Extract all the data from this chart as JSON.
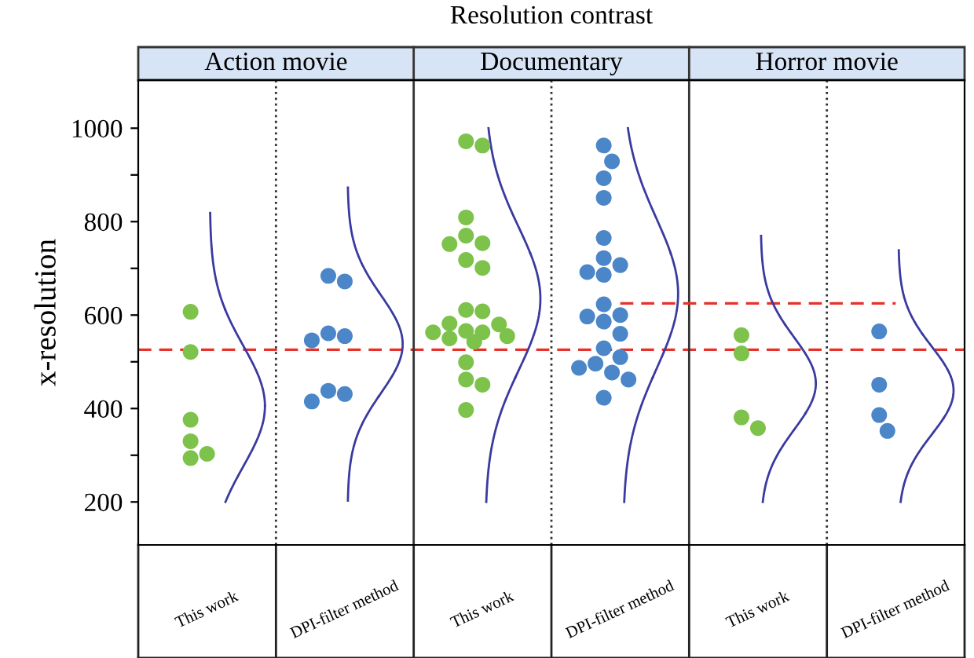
{
  "chart_data": {
    "type": "scatter",
    "title": "Resolution contrast",
    "ylabel": "x-resolution",
    "marker": "circle",
    "categories": [
      "This work",
      "DPI-filter method",
      "This work",
      "DPI-filter method",
      "This work",
      "DPI-filter method"
    ],
    "annotations": [
      "Action movie",
      "Documentary",
      "Horror movie"
    ],
    "ylim": [
      108,
      1103
    ],
    "yticks": [
      200,
      {
        "value": 300,
        "label": null
      },
      400,
      {
        "value": 500,
        "label": null
      },
      600,
      {
        "value": 700,
        "label": null
      },
      800,
      {
        "value": 900,
        "label": null
      },
      1000
    ],
    "ref_lines": [
      {
        "axis": "y",
        "value": 526,
        "color": "#e8312a",
        "line_style": "dashed"
      }
    ],
    "series": [
      {
        "colors": [
          "#7dc24b",
          "#4a86c8",
          "#7dc24b",
          "#4a86c8",
          "#7dc24b",
          "#4a86c8"
        ],
        "values": [
          607,
          684,
          963,
          963,
          557,
          565
        ]
      },
      {
        "colors": [
          "#7dc24b",
          "#4a86c8",
          "#7dc24b",
          "#4a86c8",
          "#7dc24b",
          "#4a86c8"
        ],
        "values": [
          521,
          672,
          972,
          929,
          518,
          451
        ]
      },
      {
        "colors": [
          "#7dc24b",
          "#4a86c8",
          "#7dc24b",
          "#4a86c8",
          "#7dc24b",
          "#4a86c8"
        ],
        "values": [
          376,
          561,
          809,
          893,
          381,
          386
        ]
      },
      {
        "colors": [
          "#7dc24b",
          "#4a86c8",
          "#7dc24b",
          "#4a86c8",
          "#7dc24b",
          "#4a86c8"
        ],
        "values": [
          294,
          555,
          770,
          851,
          358,
          352
        ]
      },
      {
        "colors": [
          "#7dc24b",
          "#4a86c8",
          "#7dc24b",
          "#4a86c8",
          "#7dc24b",
          "#4a86c8"
        ],
        "values": [
          303,
          546,
          754,
          765,
          null,
          null
        ]
      },
      {
        "colors": [
          "#7dc24b",
          "#4a86c8",
          "#7dc24b",
          "#4a86c8",
          "#7dc24b",
          "#4a86c8"
        ],
        "values": [
          330,
          438,
          752,
          686,
          null,
          null
        ]
      },
      {
        "colors": [
          "#7dc24b",
          "#4a86c8",
          "#7dc24b",
          "#4a86c8",
          "#7dc24b",
          "#4a86c8"
        ],
        "values": [
          null,
          431,
          701,
          707,
          null,
          null
        ]
      },
      {
        "colors": [
          "#7dc24b",
          "#4a86c8",
          "#7dc24b",
          "#4a86c8",
          "#7dc24b",
          "#4a86c8"
        ],
        "values": [
          null,
          415,
          718,
          722,
          null,
          null
        ]
      },
      {
        "colors": [
          "#7dc24b",
          "#4a86c8",
          "#7dc24b",
          "#4a86c8",
          "#7dc24b",
          "#4a86c8"
        ],
        "values": [
          null,
          null,
          611,
          692,
          null,
          null
        ]
      },
      {
        "colors": [
          "#7dc24b",
          "#4a86c8",
          "#7dc24b",
          "#4a86c8",
          "#7dc24b",
          "#4a86c8"
        ],
        "values": [
          null,
          null,
          608,
          623,
          null,
          null
        ]
      },
      {
        "colors": [
          "#7dc24b",
          "#4a86c8",
          "#7dc24b",
          "#4a86c8",
          "#7dc24b",
          "#4a86c8"
        ],
        "values": [
          null,
          null,
          582,
          597,
          null,
          null
        ]
      },
      {
        "colors": [
          "#7dc24b",
          "#4a86c8",
          "#7dc24b",
          "#4a86c8",
          "#7dc24b",
          "#4a86c8"
        ],
        "values": [
          null,
          null,
          580,
          586,
          null,
          null
        ]
      },
      {
        "colors": [
          "#7dc24b",
          "#4a86c8",
          "#7dc24b",
          "#4a86c8",
          "#7dc24b",
          "#4a86c8"
        ],
        "values": [
          null,
          null,
          563,
          600,
          null,
          null
        ]
      },
      {
        "colors": [
          "#7dc24b",
          "#4a86c8",
          "#7dc24b",
          "#4a86c8",
          "#7dc24b",
          "#4a86c8"
        ],
        "values": [
          null,
          null,
          566,
          560,
          null,
          null
        ]
      },
      {
        "colors": [
          "#7dc24b",
          "#4a86c8",
          "#7dc24b",
          "#4a86c8",
          "#7dc24b",
          "#4a86c8"
        ],
        "values": [
          null,
          null,
          563,
          529,
          null,
          null
        ]
      },
      {
        "colors": [
          "#7dc24b",
          "#4a86c8",
          "#7dc24b",
          "#4a86c8",
          "#7dc24b",
          "#4a86c8"
        ],
        "values": [
          null,
          null,
          550,
          510,
          null,
          null
        ]
      },
      {
        "colors": [
          "#7dc24b",
          "#4a86c8",
          "#7dc24b",
          "#4a86c8",
          "#7dc24b",
          "#4a86c8"
        ],
        "values": [
          null,
          null,
          543,
          477,
          null,
          null
        ]
      },
      {
        "colors": [
          "#7dc24b",
          "#4a86c8",
          "#7dc24b",
          "#4a86c8",
          "#7dc24b",
          "#4a86c8"
        ],
        "values": [
          null,
          null,
          555,
          496,
          null,
          null
        ]
      },
      {
        "colors": [
          "#7dc24b",
          "#4a86c8",
          "#7dc24b",
          "#4a86c8",
          "#7dc24b",
          "#4a86c8"
        ],
        "values": [
          null,
          null,
          499,
          487,
          null,
          null
        ]
      },
      {
        "colors": [
          "#7dc24b",
          "#4a86c8",
          "#7dc24b",
          "#4a86c8",
          "#7dc24b",
          "#4a86c8"
        ],
        "values": [
          null,
          null,
          462,
          462,
          null,
          null
        ]
      },
      {
        "colors": [
          "#7dc24b",
          "#4a86c8",
          "#7dc24b",
          "#4a86c8",
          "#7dc24b",
          "#4a86c8"
        ],
        "values": [
          null,
          null,
          451,
          423,
          null,
          null
        ]
      },
      {
        "colors": [
          "#7dc24b",
          "#4a86c8",
          "#7dc24b",
          "#4a86c8",
          "#7dc24b",
          "#4a86c8"
        ],
        "values": [
          null,
          null,
          397,
          null,
          null,
          null
        ]
      },
      {
        "type": "step",
        "color": "#e8312a",
        "line_style": "dashed",
        "marker": "none",
        "values": [
          null,
          null,
          null,
          625,
          625,
          625
        ]
      }
    ]
  }
}
